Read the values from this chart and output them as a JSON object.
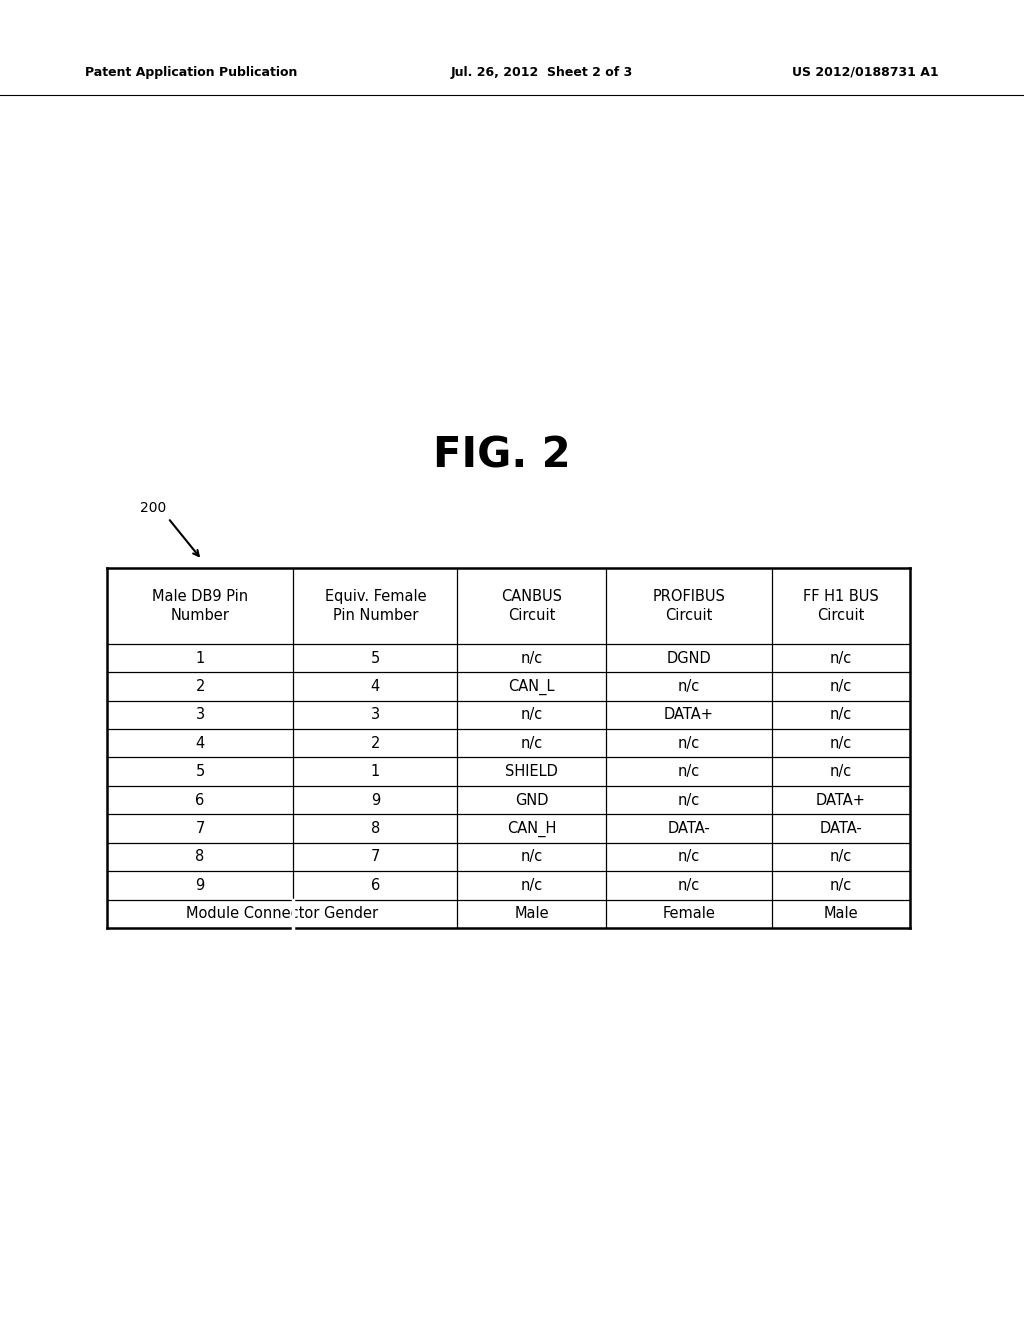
{
  "header_left": "Patent Application Publication",
  "header_center": "Jul. 26, 2012  Sheet 2 of 3",
  "header_right": "US 2012/0188731 A1",
  "figure_label": "FIG. 2",
  "reference_number": "200",
  "col_headers": [
    [
      "Male DB9 Pin",
      "Number"
    ],
    [
      "Equiv. Female",
      "Pin Number"
    ],
    [
      "CANBUS",
      "Circuit"
    ],
    [
      "PROFIBUS",
      "Circuit"
    ],
    [
      "FF H1 BUS",
      "Circuit"
    ]
  ],
  "rows": [
    [
      "1",
      "5",
      "n/c",
      "DGND",
      "n/c"
    ],
    [
      "2",
      "4",
      "CAN_L",
      "n/c",
      "n/c"
    ],
    [
      "3",
      "3",
      "n/c",
      "DATA+",
      "n/c"
    ],
    [
      "4",
      "2",
      "n/c",
      "n/c",
      "n/c"
    ],
    [
      "5",
      "1",
      "SHIELD",
      "n/c",
      "n/c"
    ],
    [
      "6",
      "9",
      "GND",
      "n/c",
      "DATA+"
    ],
    [
      "7",
      "8",
      "CAN_H",
      "DATA-",
      "DATA-"
    ],
    [
      "8",
      "7",
      "n/c",
      "n/c",
      "n/c"
    ],
    [
      "9",
      "6",
      "n/c",
      "n/c",
      "n/c"
    ],
    [
      "Module Connector Gender",
      "",
      "Male",
      "Female",
      "Male"
    ]
  ],
  "bg_color": "#ffffff",
  "text_color": "#000000",
  "line_color": "#000000"
}
